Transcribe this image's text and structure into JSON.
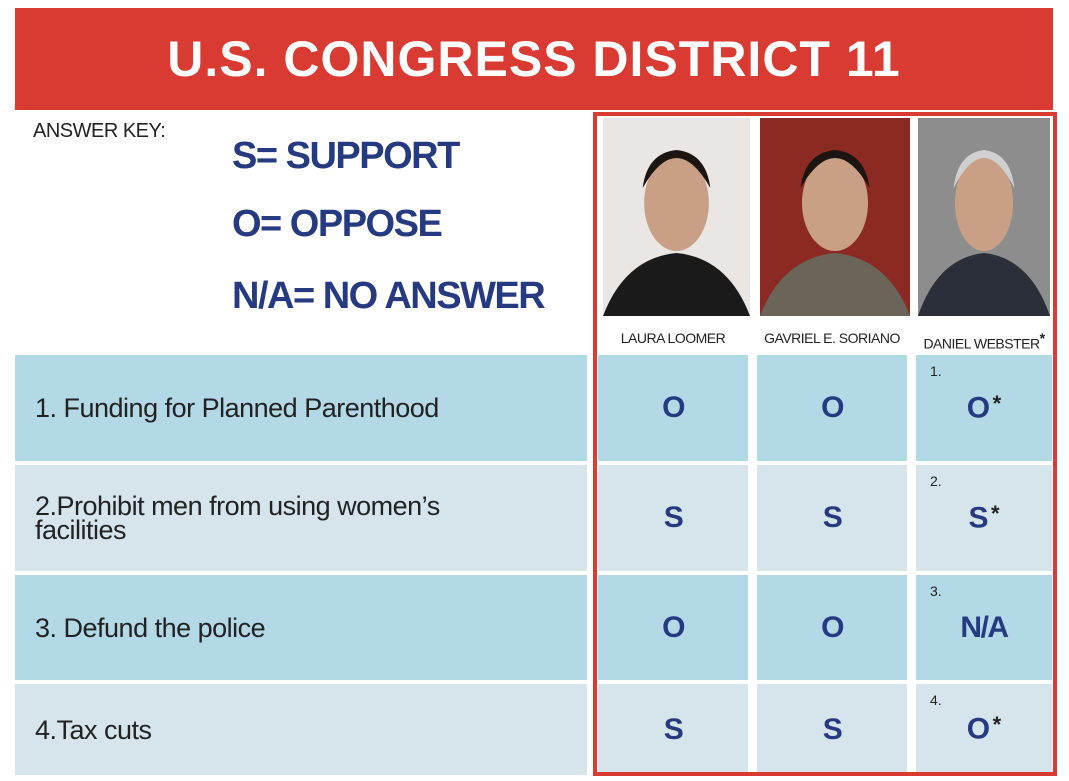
{
  "header": {
    "title": "U.S. CONGRESS DISTRICT 11"
  },
  "answer_key": {
    "label": "ANSWER KEY:",
    "items": [
      "S= SUPPORT",
      "O= OPPOSE",
      "N/A= NO ANSWER"
    ]
  },
  "candidates": [
    {
      "name": "LAURA LOOMER"
    },
    {
      "name": "GAVRIEL E. SORIANO"
    },
    {
      "name": "DANIEL WEBSTER",
      "mark": "*"
    }
  ],
  "rows": [
    {
      "question": "1. Funding for Planned Parenthood",
      "cells": [
        {
          "text": "O"
        },
        {
          "text": "O"
        },
        {
          "text": "O",
          "note": "1.",
          "mark": "*"
        }
      ]
    },
    {
      "question": "2.Prohibit men from using women’s facilities",
      "cells": [
        {
          "text": "S"
        },
        {
          "text": "S"
        },
        {
          "text": "S",
          "note": "2.",
          "mark": "*"
        }
      ]
    },
    {
      "question": "3. Defund the police",
      "cells": [
        {
          "text": "O"
        },
        {
          "text": "O"
        },
        {
          "text": "N/A",
          "note": "3."
        }
      ]
    },
    {
      "question": "4.Tax cuts",
      "cells": [
        {
          "text": "S"
        },
        {
          "text": "S"
        },
        {
          "text": "O",
          "note": "4.",
          "mark": "*"
        }
      ]
    }
  ]
}
